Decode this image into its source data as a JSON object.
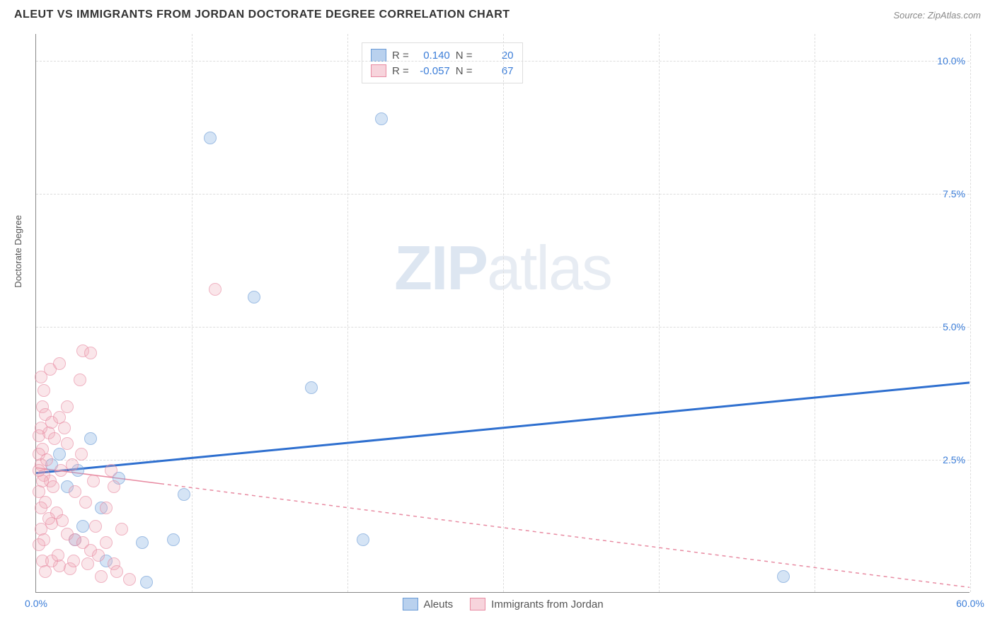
{
  "title": "ALEUT VS IMMIGRANTS FROM JORDAN DOCTORATE DEGREE CORRELATION CHART",
  "source": "Source: ZipAtlas.com",
  "watermark_a": "ZIP",
  "watermark_b": "atlas",
  "y_axis_title": "Doctorate Degree",
  "chart": {
    "type": "scatter",
    "background_color": "#ffffff",
    "grid_color": "#dddddd",
    "axis_color": "#888888",
    "xlim": [
      0,
      60
    ],
    "ylim": [
      0,
      10.5
    ],
    "x_ticks": [
      0,
      10,
      20,
      30,
      40,
      50,
      60
    ],
    "x_tick_labels": [
      "0.0%",
      "",
      "",
      "",
      "",
      "",
      "60.0%"
    ],
    "y_ticks": [
      2.5,
      5.0,
      7.5,
      10.0
    ],
    "y_tick_labels": [
      "2.5%",
      "5.0%",
      "7.5%",
      "10.0%"
    ],
    "series": [
      {
        "name": "Aleuts",
        "color_fill": "rgba(139,178,226,0.55)",
        "color_stroke": "#6a9bd6",
        "marker_size": 18,
        "r_value": "0.140",
        "n_value": "20",
        "trend": {
          "x1": 0,
          "y1": 2.25,
          "x2": 60,
          "y2": 3.95,
          "color": "#2e6fcf",
          "width": 3,
          "dash": "none"
        },
        "points": [
          [
            11.2,
            8.55
          ],
          [
            22.2,
            8.9
          ],
          [
            14.0,
            5.55
          ],
          [
            17.7,
            3.85
          ],
          [
            9.5,
            1.85
          ],
          [
            5.3,
            2.15
          ],
          [
            2.7,
            2.3
          ],
          [
            7.1,
            0.2
          ],
          [
            8.8,
            1.0
          ],
          [
            6.8,
            0.95
          ],
          [
            4.2,
            1.6
          ],
          [
            3.0,
            1.25
          ],
          [
            1.5,
            2.6
          ],
          [
            2.0,
            2.0
          ],
          [
            4.5,
            0.6
          ],
          [
            21.0,
            1.0
          ],
          [
            2.5,
            1.0
          ],
          [
            3.5,
            2.9
          ],
          [
            1.0,
            2.4
          ],
          [
            48.0,
            0.3
          ]
        ]
      },
      {
        "name": "Immigrants from Jordan",
        "color_fill": "rgba(240,170,185,0.45)",
        "color_stroke": "#e88ba2",
        "marker_size": 18,
        "r_value": "-0.057",
        "n_value": "67",
        "trend": {
          "x1": 0,
          "y1": 2.35,
          "x2": 60,
          "y2": 0.1,
          "color": "#e88ba2",
          "width": 1.5,
          "dash": "5,5",
          "solid_until_x": 8
        },
        "points": [
          [
            0.3,
            4.05
          ],
          [
            0.5,
            3.8
          ],
          [
            0.4,
            3.5
          ],
          [
            0.6,
            3.35
          ],
          [
            0.8,
            3.0
          ],
          [
            1.0,
            3.2
          ],
          [
            1.2,
            2.9
          ],
          [
            0.4,
            2.7
          ],
          [
            0.2,
            2.6
          ],
          [
            0.3,
            2.4
          ],
          [
            0.5,
            2.2
          ],
          [
            0.7,
            2.5
          ],
          [
            0.9,
            2.1
          ],
          [
            1.1,
            2.0
          ],
          [
            0.2,
            1.9
          ],
          [
            1.5,
            3.3
          ],
          [
            1.8,
            3.1
          ],
          [
            2.0,
            2.8
          ],
          [
            2.3,
            2.4
          ],
          [
            1.6,
            2.3
          ],
          [
            2.5,
            1.9
          ],
          [
            3.0,
            4.55
          ],
          [
            3.5,
            4.5
          ],
          [
            2.8,
            4.0
          ],
          [
            1.0,
            1.3
          ],
          [
            1.3,
            1.5
          ],
          [
            1.7,
            1.35
          ],
          [
            2.0,
            1.1
          ],
          [
            2.5,
            1.0
          ],
          [
            3.0,
            0.95
          ],
          [
            3.5,
            0.8
          ],
          [
            4.0,
            0.7
          ],
          [
            4.5,
            0.95
          ],
          [
            5.0,
            0.55
          ],
          [
            1.5,
            0.5
          ],
          [
            2.2,
            0.45
          ],
          [
            3.3,
            0.55
          ],
          [
            4.2,
            0.3
          ],
          [
            5.5,
            1.2
          ],
          [
            6.0,
            0.25
          ],
          [
            5.2,
            0.4
          ],
          [
            3.8,
            1.25
          ],
          [
            4.5,
            1.6
          ],
          [
            5.0,
            2.0
          ],
          [
            4.8,
            2.3
          ],
          [
            3.7,
            2.1
          ],
          [
            11.5,
            5.7
          ],
          [
            0.6,
            1.7
          ],
          [
            0.8,
            1.4
          ],
          [
            0.3,
            1.2
          ],
          [
            0.5,
            1.0
          ],
          [
            0.2,
            0.9
          ],
          [
            0.4,
            0.6
          ],
          [
            0.6,
            0.4
          ],
          [
            1.0,
            0.6
          ],
          [
            1.4,
            0.7
          ],
          [
            2.4,
            0.6
          ],
          [
            3.2,
            1.7
          ],
          [
            2.9,
            2.6
          ],
          [
            2.0,
            3.5
          ],
          [
            0.9,
            4.2
          ],
          [
            1.5,
            4.3
          ],
          [
            0.3,
            3.1
          ],
          [
            0.2,
            2.95
          ],
          [
            0.4,
            2.1
          ],
          [
            0.3,
            1.6
          ],
          [
            0.2,
            2.3
          ]
        ]
      }
    ]
  },
  "legend_bottom": [
    {
      "label": "Aleuts",
      "class": "blue"
    },
    {
      "label": "Immigrants from Jordan",
      "class": "pink"
    }
  ],
  "legend_top_labels": {
    "r": "R =",
    "n": "N ="
  }
}
